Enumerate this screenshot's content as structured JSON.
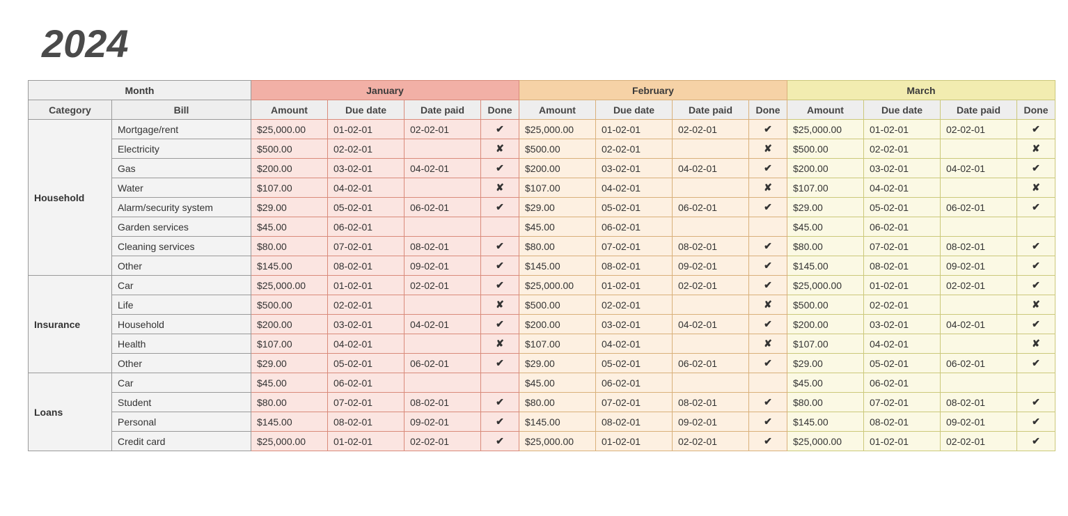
{
  "title_year": "2024",
  "header": {
    "month_label": "Month",
    "category_label": "Category",
    "bill_label": "Bill",
    "column_labels": [
      "Amount",
      "Due date",
      "Date paid",
      "Done"
    ]
  },
  "months": [
    {
      "name": "January",
      "header_bg": "#f2b0a6",
      "sub_bg": "#f5c3ba",
      "cell_bg": "#fbe5e1",
      "border": "#d98a7a"
    },
    {
      "name": "February",
      "header_bg": "#f6d2a6",
      "sub_bg": "#f8dcba",
      "cell_bg": "#fdf0e1",
      "border": "#d9b07a"
    },
    {
      "name": "March",
      "header_bg": "#f2ecb0",
      "sub_bg": "#f4efc0",
      "cell_bg": "#fbf9e4",
      "border": "#cbc87a"
    }
  ],
  "icons": {
    "done_true": "✔",
    "done_false": "✘",
    "done_blank": ""
  },
  "categories": [
    {
      "name": "Household",
      "bills": [
        {
          "name": "Mortgage/rent",
          "amount": "$25,000.00",
          "due": "01-02-01",
          "paid": "02-02-01",
          "done": "✔"
        },
        {
          "name": "Electricity",
          "amount": "$500.00",
          "due": "02-02-01",
          "paid": "",
          "done": "✘"
        },
        {
          "name": "Gas",
          "amount": "$200.00",
          "due": "03-02-01",
          "paid": "04-02-01",
          "done": "✔"
        },
        {
          "name": "Water",
          "amount": "$107.00",
          "due": "04-02-01",
          "paid": "",
          "done": "✘"
        },
        {
          "name": "Alarm/security system",
          "amount": "$29.00",
          "due": "05-02-01",
          "paid": "06-02-01",
          "done": "✔"
        },
        {
          "name": "Garden services",
          "amount": "$45.00",
          "due": "06-02-01",
          "paid": "",
          "done": ""
        },
        {
          "name": "Cleaning services",
          "amount": "$80.00",
          "due": "07-02-01",
          "paid": "08-02-01",
          "done": "✔"
        },
        {
          "name": "Other",
          "amount": "$145.00",
          "due": "08-02-01",
          "paid": "09-02-01",
          "done": "✔"
        }
      ]
    },
    {
      "name": "Insurance",
      "bills": [
        {
          "name": "Car",
          "amount": "$25,000.00",
          "due": "01-02-01",
          "paid": "02-02-01",
          "done": "✔"
        },
        {
          "name": "Life",
          "amount": "$500.00",
          "due": "02-02-01",
          "paid": "",
          "done": "✘"
        },
        {
          "name": "Household",
          "amount": "$200.00",
          "due": "03-02-01",
          "paid": "04-02-01",
          "done": "✔"
        },
        {
          "name": "Health",
          "amount": "$107.00",
          "due": "04-02-01",
          "paid": "",
          "done": "✘"
        },
        {
          "name": "Other",
          "amount": "$29.00",
          "due": "05-02-01",
          "paid": "06-02-01",
          "done": "✔"
        }
      ]
    },
    {
      "name": "Loans",
      "bills": [
        {
          "name": "Car",
          "amount": "$45.00",
          "due": "06-02-01",
          "paid": "",
          "done": ""
        },
        {
          "name": "Student",
          "amount": "$80.00",
          "due": "07-02-01",
          "paid": "08-02-01",
          "done": "✔"
        },
        {
          "name": "Personal",
          "amount": "$145.00",
          "due": "08-02-01",
          "paid": "09-02-01",
          "done": "✔"
        },
        {
          "name": "Credit card",
          "amount": "$25,000.00",
          "due": "01-02-01",
          "paid": "02-02-01",
          "done": "✔"
        }
      ]
    }
  ]
}
